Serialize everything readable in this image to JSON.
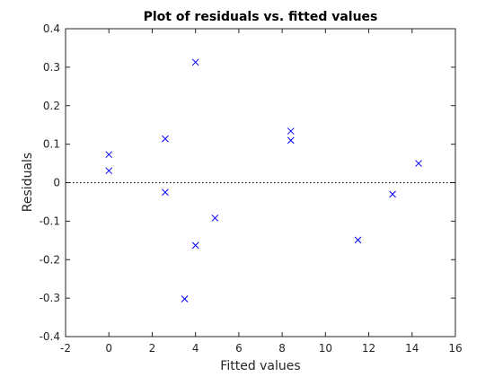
{
  "chart_data": {
    "type": "scatter",
    "title": "Plot of residuals vs. fitted values",
    "xlabel": "Fitted values",
    "ylabel": "Residuals",
    "xlim": [
      -2,
      16
    ],
    "ylim": [
      -0.4,
      0.4
    ],
    "xticks": [
      -2,
      0,
      2,
      4,
      6,
      8,
      10,
      12,
      14,
      16
    ],
    "yticks": [
      -0.4,
      -0.3,
      -0.2,
      -0.1,
      0,
      0.1,
      0.2,
      0.3,
      0.4
    ],
    "xtick_labels": [
      "-2",
      "0",
      "2",
      "4",
      "6",
      "8",
      "10",
      "12",
      "14",
      "16"
    ],
    "ytick_labels": [
      "-0.4",
      "-0.3",
      "-0.2",
      "-0.1",
      "0",
      "0.1",
      "0.2",
      "0.3",
      "0.4"
    ],
    "marker": "x",
    "marker_color": "#0000ff",
    "reference_line": {
      "y": 0,
      "style": "dotted",
      "color": "#000000"
    },
    "grid": false,
    "series": [
      {
        "points": [
          {
            "x": 0.0,
            "y": 0.073
          },
          {
            "x": 0.0,
            "y": 0.031
          },
          {
            "x": 2.6,
            "y": 0.114
          },
          {
            "x": 2.6,
            "y": -0.025
          },
          {
            "x": 3.5,
            "y": -0.302
          },
          {
            "x": 4.0,
            "y": 0.313
          },
          {
            "x": 4.0,
            "y": -0.163
          },
          {
            "x": 4.9,
            "y": -0.092
          },
          {
            "x": 8.4,
            "y": 0.134
          },
          {
            "x": 8.4,
            "y": 0.11
          },
          {
            "x": 11.5,
            "y": -0.149
          },
          {
            "x": 13.1,
            "y": -0.03
          },
          {
            "x": 14.3,
            "y": 0.05
          }
        ]
      }
    ]
  }
}
